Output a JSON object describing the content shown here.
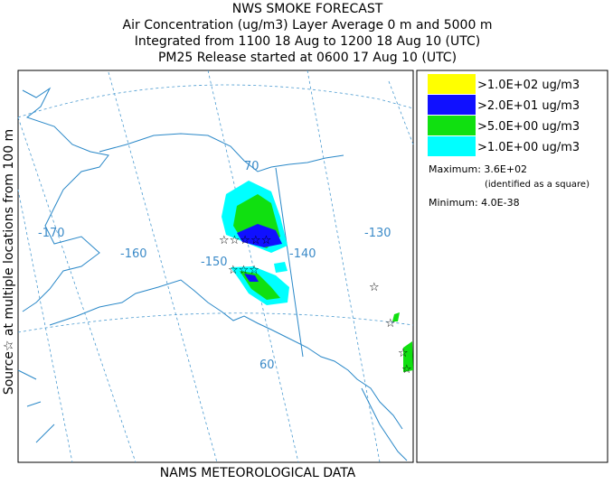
{
  "header": {
    "lines": [
      "NWS SMOKE FORECAST",
      "Air Concentration (ug/m3) Layer Average    0 m and  5000 m",
      "Integrated from 1100 18 Aug to 1200 18 Aug 10 (UTC)",
      "PM25 Release started at 0600 17 Aug 10 (UTC)"
    ]
  },
  "side_label": "Source☆ at multiple locations from  100 m",
  "footer": "NAMS METEOROLOGICAL DATA",
  "map": {
    "labels": [
      "-170",
      "-160",
      "-150",
      "-140",
      "-130",
      "70",
      "60"
    ]
  },
  "legend": {
    "items": [
      {
        "label": ">1.0E+02 ug/m3",
        "color": "#ffff00"
      },
      {
        "label": ">2.0E+01 ug/m3",
        "color": "#1010ff"
      },
      {
        "label": ">5.0E+00 ug/m3",
        "color": "#10e010"
      },
      {
        "label": ">1.0E+00 ug/m3",
        "color": "#00ffff"
      }
    ],
    "maximum": "Maximum: 3.6E+02",
    "maximum_note": "(identified as a square)",
    "minimum": "Minimum: 4.0E-38"
  }
}
